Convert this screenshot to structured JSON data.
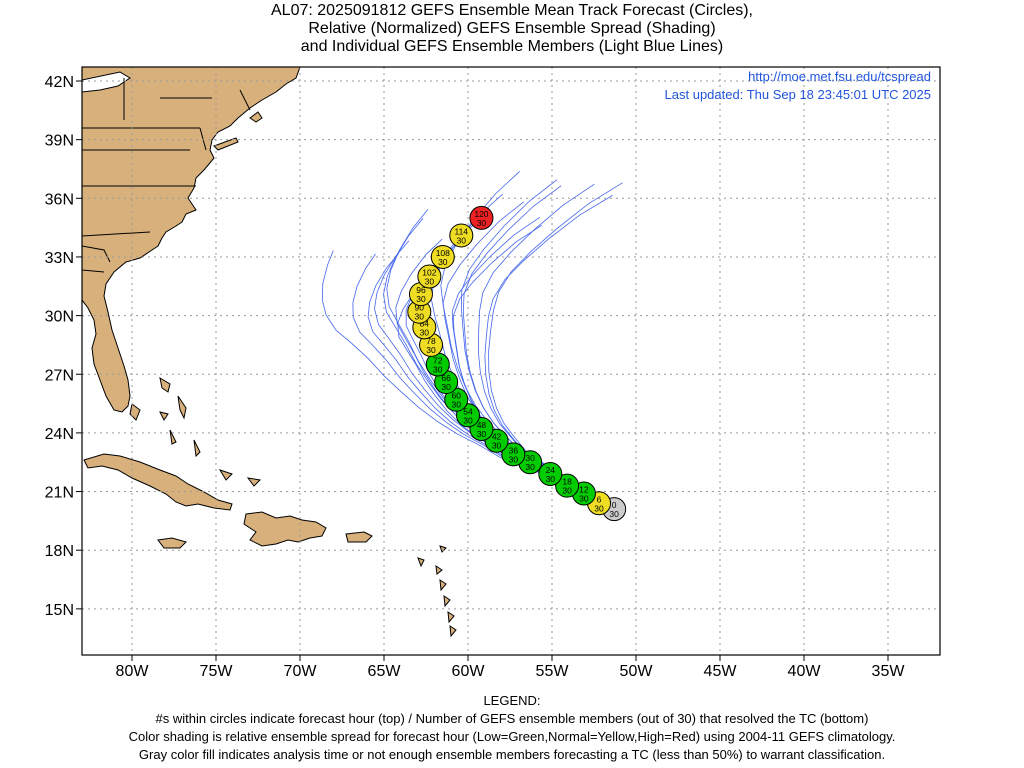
{
  "title_lines": [
    "AL07: 2025091812 GEFS Ensemble Mean Track Forecast (Circles),",
    "Relative (Normalized) GEFS Ensemble Spread (Shading)",
    "and Individual GEFS Ensemble Members (Light Blue Lines)"
  ],
  "source_url": "http://moe.met.fsu.edu/tcspread",
  "last_updated": "Last updated: Thu Sep 18 23:45:01 UTC 2025",
  "lat_labels": [
    "42N",
    "39N",
    "36N",
    "33N",
    "30N",
    "27N",
    "24N",
    "21N",
    "18N",
    "15N"
  ],
  "lon_labels": [
    "80W",
    "75W",
    "70W",
    "65W",
    "60W",
    "55W",
    "50W",
    "45W",
    "40W",
    "35W"
  ],
  "legend": {
    "heading": "LEGEND:",
    "lines": [
      "#s within circles indicate forecast hour (top) / Number of GEFS ensemble members (out of 30) that resolved the TC (bottom)",
      "Color shading is relative ensemble spread for forecast hour (Low=Green,Normal=Yellow,High=Red) using 2004-11 GEFS climatology.",
      "Gray color fill indicates analysis time or not enough ensemble members forecasting a TC (less than 50%) to warrant classification."
    ]
  },
  "colors": {
    "land": "#d8b07c",
    "ocean": "#ffffff",
    "grid": "#9a9a9a",
    "ensemble": "#4466ee",
    "link_text": "#2255dd",
    "low": "#00cc00",
    "normal": "#eedd22",
    "high": "#ee2222",
    "analysis": "#cccccc"
  },
  "track_points": [
    {
      "hour": "0",
      "members": "30",
      "lon": -51.3,
      "lat": 20.1,
      "spread": "gray"
    },
    {
      "hour": "6",
      "members": "30",
      "lon": -52.2,
      "lat": 20.4,
      "spread": "normal"
    },
    {
      "hour": "12",
      "members": "30",
      "lon": -53.1,
      "lat": 20.9,
      "spread": "low"
    },
    {
      "hour": "18",
      "members": "30",
      "lon": -54.1,
      "lat": 21.3,
      "spread": "low"
    },
    {
      "hour": "24",
      "members": "30",
      "lon": -55.1,
      "lat": 21.9,
      "spread": "low"
    },
    {
      "hour": "30",
      "members": "30",
      "lon": -56.3,
      "lat": 22.5,
      "spread": "low"
    },
    {
      "hour": "36",
      "members": "30",
      "lon": -57.3,
      "lat": 22.9,
      "spread": "low"
    },
    {
      "hour": "42",
      "members": "30",
      "lon": -58.3,
      "lat": 23.6,
      "spread": "low"
    },
    {
      "hour": "48",
      "members": "30",
      "lon": -59.2,
      "lat": 24.2,
      "spread": "low"
    },
    {
      "hour": "54",
      "members": "30",
      "lon": -60.0,
      "lat": 24.9,
      "spread": "low"
    },
    {
      "hour": "60",
      "members": "30",
      "lon": -60.7,
      "lat": 25.7,
      "spread": "low"
    },
    {
      "hour": "66",
      "members": "30",
      "lon": -61.3,
      "lat": 26.6,
      "spread": "low"
    },
    {
      "hour": "72",
      "members": "30",
      "lon": -61.8,
      "lat": 27.5,
      "spread": "low"
    },
    {
      "hour": "78",
      "members": "30",
      "lon": -62.2,
      "lat": 28.5,
      "spread": "normal"
    },
    {
      "hour": "84",
      "members": "30",
      "lon": -62.6,
      "lat": 29.4,
      "spread": "normal"
    },
    {
      "hour": "90",
      "members": "30",
      "lon": -62.9,
      "lat": 30.2,
      "spread": "normal"
    },
    {
      "hour": "96",
      "members": "30",
      "lon": -62.8,
      "lat": 31.1,
      "spread": "normal"
    },
    {
      "hour": "102",
      "members": "30",
      "lon": -62.3,
      "lat": 32.0,
      "spread": "normal"
    },
    {
      "hour": "108",
      "members": "30",
      "lon": -61.5,
      "lat": 33.0,
      "spread": "normal"
    },
    {
      "hour": "114",
      "members": "30",
      "lon": -60.4,
      "lat": 34.1,
      "spread": "normal"
    },
    {
      "hour": "120",
      "members": "30",
      "lon": -59.2,
      "lat": 35.0,
      "spread": "high"
    }
  ]
}
